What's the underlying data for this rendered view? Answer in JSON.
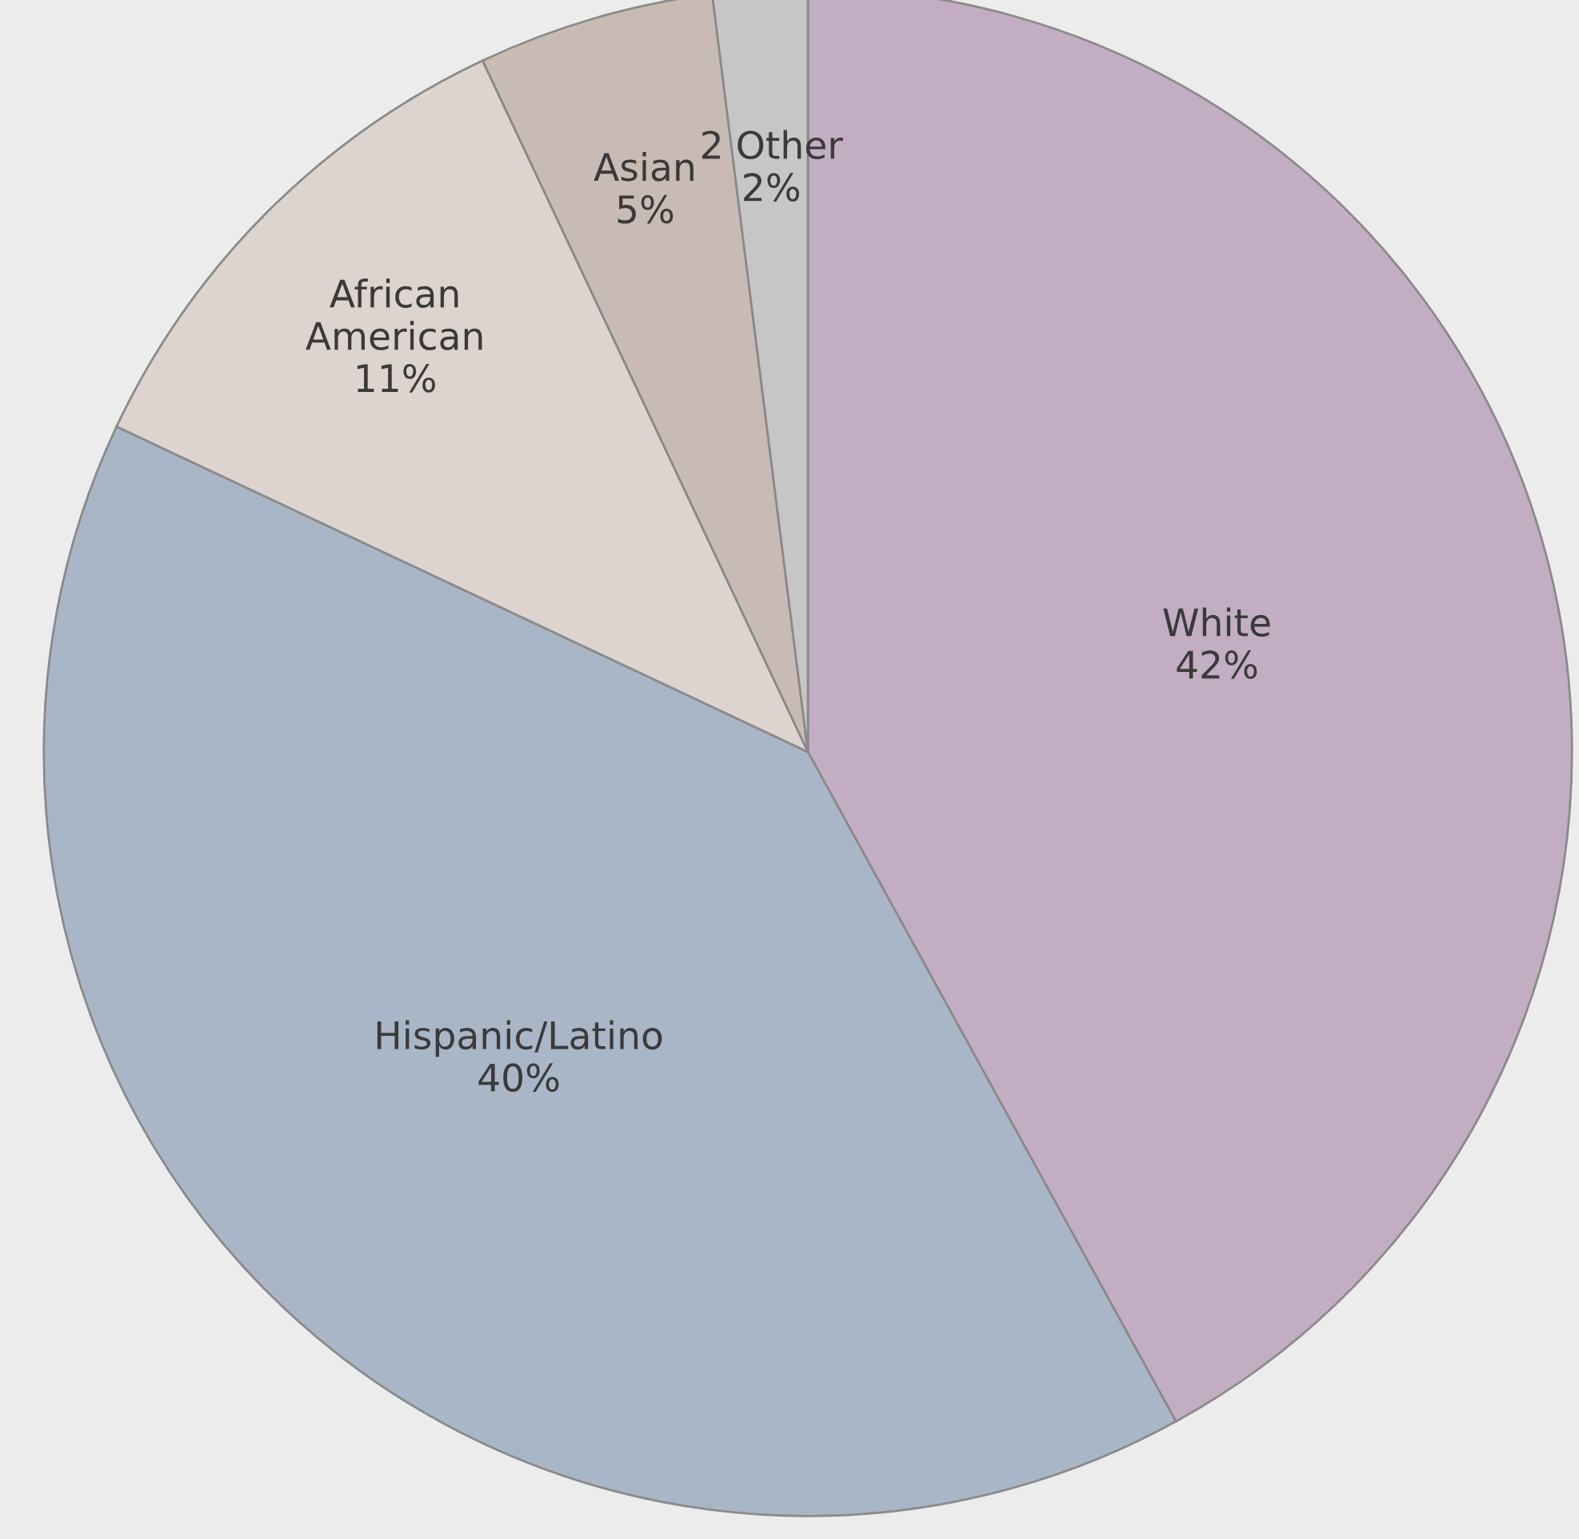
{
  "chart_data": {
    "type": "pie",
    "categories": [
      "White",
      "Hispanic/Latino",
      "African American",
      "Asian",
      "2 Other"
    ],
    "values": [
      42,
      40,
      11,
      5,
      2
    ],
    "colors": [
      "#c3adc3",
      "#a9b6c7",
      "#ddd4cf",
      "#c8bbb4",
      "#c6c6c6"
    ],
    "value_labels": [
      "42%",
      "40%",
      "11%",
      "5%",
      "2%"
    ]
  }
}
